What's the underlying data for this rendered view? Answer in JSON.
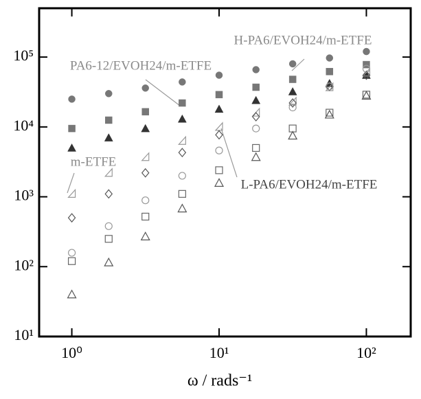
{
  "chart_data": {
    "type": "scatter",
    "x_label": "ω / rads⁻¹",
    "log_x": true,
    "log_y": true,
    "xlim": [
      0.6,
      200
    ],
    "ylim": [
      10,
      500000
    ],
    "xticks": [
      {
        "value": 1,
        "label": "10⁰"
      },
      {
        "value": 10,
        "label": "10¹"
      },
      {
        "value": 100,
        "label": "10²"
      }
    ],
    "yticks": [
      {
        "value": 10,
        "label": "10¹"
      },
      {
        "value": 100,
        "label": "10²"
      },
      {
        "value": 1000,
        "label": "10³"
      },
      {
        "value": 10000,
        "label": "10⁴"
      },
      {
        "value": 100000,
        "label": "10⁵"
      }
    ],
    "x": [
      1,
      1.78,
      3.16,
      5.62,
      10,
      17.8,
      31.6,
      56.2,
      100
    ],
    "series": [
      {
        "marker": "circle",
        "filled": true,
        "color": "#777777",
        "values": [
          25000,
          30000,
          36000,
          44000,
          55000,
          66000,
          80000,
          97000,
          120000
        ]
      },
      {
        "marker": "square",
        "filled": true,
        "color": "#777777",
        "values": [
          9500,
          12500,
          16500,
          22000,
          29000,
          37000,
          48000,
          62000,
          78000
        ]
      },
      {
        "marker": "triangle",
        "filled": true,
        "color": "#333333",
        "values": [
          5000,
          7000,
          9500,
          13000,
          18000,
          24000,
          32000,
          42000,
          55000
        ]
      },
      {
        "marker": "half-triangle",
        "filled": false,
        "color": "#999999",
        "values": [
          1100,
          2200,
          3700,
          6300,
          10000,
          16000,
          23000,
          37000,
          60000
        ]
      },
      {
        "marker": "diamond",
        "filled": false,
        "color": "#555555",
        "values": [
          500,
          1100,
          2200,
          4300,
          7700,
          14000,
          22000,
          38000,
          55000
        ]
      },
      {
        "marker": "circle",
        "filled": false,
        "color": "#999999",
        "values": [
          158,
          380,
          890,
          2000,
          4600,
          9500,
          19000,
          38000,
          68000
        ]
      },
      {
        "marker": "square",
        "filled": false,
        "color": "#666666",
        "values": [
          120,
          250,
          520,
          1100,
          2400,
          5000,
          9500,
          16000,
          29000
        ]
      },
      {
        "marker": "triangle",
        "filled": false,
        "color": "#555555",
        "values": [
          40,
          115,
          270,
          680,
          1580,
          3700,
          7500,
          15000,
          28000
        ]
      }
    ],
    "annotations": [
      "H-PA6/EVOH24/m-ETFE",
      "PA6-12/EVOH24/m-ETFE",
      "m-ETFE",
      "L-PA6/EVOH24/m-ETFE"
    ]
  }
}
